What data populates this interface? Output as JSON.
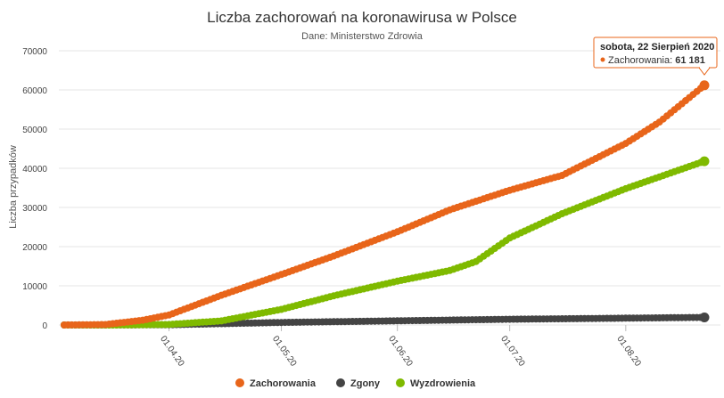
{
  "chart_data": {
    "type": "line",
    "title": "Liczba zachorowań na koronawirusa w Polsce",
    "subtitle": "Dane: Ministerstwo Zdrowia",
    "ylabel": "Liczba przypadków",
    "ylim": [
      0,
      70000
    ],
    "yticks": [
      0,
      10000,
      20000,
      30000,
      40000,
      50000,
      60000,
      70000
    ],
    "ytick_labels": [
      "0",
      "10000",
      "20000",
      "30000",
      "40000",
      "50000",
      "60000",
      "70000"
    ],
    "x_start": "2020-03-04",
    "x_end": "2020-08-22",
    "xtick_labels": [
      "01.04.20",
      "01.05.20",
      "01.06.20",
      "01.07.20",
      "01.08.20"
    ],
    "xtick_dates": [
      "2020-04-01",
      "2020-05-01",
      "2020-06-01",
      "2020-07-01",
      "2020-08-01"
    ],
    "grid": "horizontal",
    "legend": "bottom-center",
    "series": [
      {
        "name": "Zachorowania",
        "color": "#e8651a",
        "keypoints": [
          [
            "2020-03-04",
            1
          ],
          [
            "2020-03-15",
            119
          ],
          [
            "2020-03-25",
            1221
          ],
          [
            "2020-04-01",
            2554
          ],
          [
            "2020-04-15",
            7582
          ],
          [
            "2020-05-01",
            12877
          ],
          [
            "2020-05-15",
            17615
          ],
          [
            "2020-06-01",
            23786
          ],
          [
            "2020-06-15",
            29392
          ],
          [
            "2020-07-01",
            34393
          ],
          [
            "2020-07-15",
            38190
          ],
          [
            "2020-08-01",
            46346
          ],
          [
            "2020-08-10",
            51791
          ],
          [
            "2020-08-22",
            61181
          ]
        ]
      },
      {
        "name": "Zgony",
        "color": "#444444",
        "keypoints": [
          [
            "2020-03-04",
            0
          ],
          [
            "2020-03-12",
            1
          ],
          [
            "2020-04-01",
            57
          ],
          [
            "2020-05-01",
            644
          ],
          [
            "2020-06-01",
            1064
          ],
          [
            "2020-07-01",
            1463
          ],
          [
            "2020-08-01",
            1739
          ],
          [
            "2020-08-22",
            1938
          ]
        ]
      },
      {
        "name": "Wyzdrowienia",
        "color": "#7fba00",
        "keypoints": [
          [
            "2020-03-04",
            0
          ],
          [
            "2020-03-20",
            13
          ],
          [
            "2020-04-01",
            134
          ],
          [
            "2020-04-15",
            1040
          ],
          [
            "2020-05-01",
            3984
          ],
          [
            "2020-05-15",
            7451
          ],
          [
            "2020-06-01",
            11186
          ],
          [
            "2020-06-15",
            13900
          ],
          [
            "2020-06-22",
            16200
          ],
          [
            "2020-07-01",
            22209
          ],
          [
            "2020-07-15",
            28400
          ],
          [
            "2020-08-01",
            34800
          ],
          [
            "2020-08-22",
            41800
          ]
        ]
      }
    ]
  },
  "tooltip": {
    "date": "sobota, 22 Sierpień 2020",
    "series_label": "Zachorowania: ",
    "value": "61 181",
    "color": "#e8651a"
  }
}
